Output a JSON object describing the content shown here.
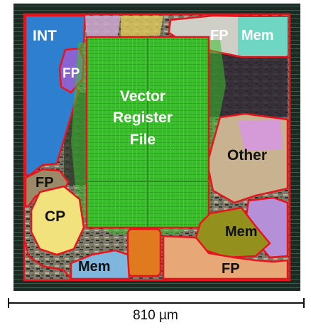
{
  "figure": {
    "labels": {
      "int": "INT",
      "fp_top": "FP",
      "mem_top": "Mem",
      "fp_small": "FP",
      "vrf_line1": "Vector",
      "vrf_line2": "Register",
      "vrf_line3": "File",
      "other": "Other",
      "fp_left": "FP",
      "cp": "CP",
      "mem_right": "Mem",
      "mem_bottom": "Mem",
      "fp_bottom": "FP"
    },
    "scale_bar": "810 µm"
  },
  "colors": {
    "region_outline": "#e8141c",
    "vrf_fill": "#3cbd2e",
    "int_fill": "#2f7fd0",
    "fp_mem_fill": "#6fd6c4",
    "fp_small_fill": "#8a63d2",
    "other_fill": "#c9b28f",
    "cp_fill": "#f1e27e",
    "mem_right_fill": "#93901e",
    "mem_bottom_fill": "#7fb6de",
    "fp_bottom_fill": "#e8a777",
    "macro_fill": "#e07a1e",
    "die_border": "#1d2a24"
  }
}
